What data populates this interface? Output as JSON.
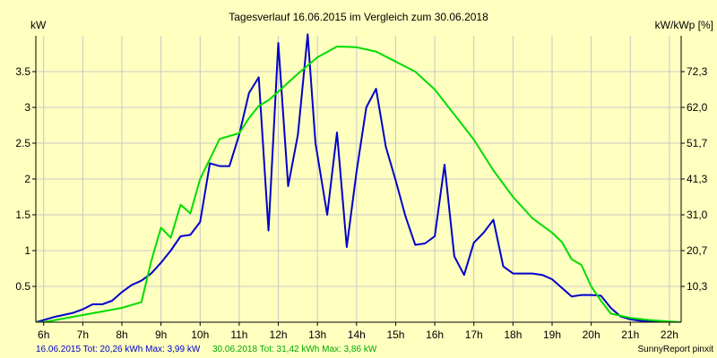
{
  "chart_data": {
    "type": "line",
    "title": "Tagesverlauf 16.06.2015 im Vergleich zum 30.06.2018",
    "ylabel_left": "kW",
    "ylabel_right": "kW/kWp [%]",
    "xlim": [
      5.8,
      22.3
    ],
    "ylim": [
      0,
      4.0
    ],
    "grid": true,
    "x_tick_values": [
      6,
      7,
      8,
      9,
      10,
      11,
      12,
      13,
      14,
      15,
      16,
      17,
      18,
      19,
      20,
      21,
      22
    ],
    "x_tick_labels": [
      "6h",
      "7h",
      "8h",
      "9h",
      "10h",
      "11h",
      "12h",
      "13h",
      "14h",
      "15h",
      "16h",
      "17h",
      "18h",
      "19h",
      "20h",
      "21h",
      "22h"
    ],
    "y_tick_values": [
      0.5,
      1,
      1.5,
      2,
      2.5,
      3,
      3.5
    ],
    "y_tick_labels": [
      "0.5",
      "1",
      "1.5",
      "2",
      "2.5",
      "3",
      "3.5"
    ],
    "y2_tick_labels": [
      "10,3",
      "20,7",
      "31,0",
      "41,3",
      "51,7",
      "62,0",
      "72,3"
    ],
    "series": [
      {
        "name": "16.06.2015",
        "color": "#0000cc",
        "x": [
          5.8,
          6.0,
          6.25,
          6.5,
          6.75,
          7.0,
          7.25,
          7.5,
          7.75,
          8.0,
          8.25,
          8.5,
          8.75,
          9.0,
          9.25,
          9.5,
          9.75,
          10.0,
          10.25,
          10.5,
          10.75,
          11.0,
          11.25,
          11.5,
          11.75,
          12.0,
          12.25,
          12.5,
          12.75,
          12.95,
          13.25,
          13.5,
          13.75,
          14.0,
          14.25,
          14.5,
          14.75,
          15.0,
          15.25,
          15.5,
          15.75,
          16.0,
          16.25,
          16.5,
          16.75,
          17.0,
          17.25,
          17.5,
          17.75,
          18.0,
          18.25,
          18.5,
          18.75,
          19.0,
          19.25,
          19.5,
          19.75,
          20.0,
          20.25,
          20.5,
          20.75,
          21.0,
          21.25,
          21.5,
          21.75,
          22.0,
          22.3
        ],
        "values": [
          0.0,
          0.03,
          0.07,
          0.1,
          0.13,
          0.18,
          0.25,
          0.25,
          0.3,
          0.42,
          0.52,
          0.58,
          0.68,
          0.83,
          1.0,
          1.2,
          1.22,
          1.4,
          2.22,
          2.18,
          2.18,
          2.62,
          3.2,
          3.42,
          1.28,
          3.9,
          1.9,
          2.62,
          4.02,
          2.5,
          1.5,
          2.65,
          1.05,
          2.1,
          3.0,
          3.26,
          2.45,
          1.98,
          1.48,
          1.08,
          1.1,
          1.2,
          2.2,
          0.92,
          0.66,
          1.11,
          1.25,
          1.43,
          0.78,
          0.68,
          0.68,
          0.68,
          0.66,
          0.6,
          0.48,
          0.36,
          0.38,
          0.38,
          0.37,
          0.2,
          0.08,
          0.04,
          0.02,
          0.01,
          0.0,
          0.0,
          0.0
        ]
      },
      {
        "name": "30.06.2018",
        "color": "#00dd00",
        "x": [
          5.8,
          6.0,
          6.5,
          7.0,
          7.5,
          8.0,
          8.5,
          8.75,
          9.0,
          9.25,
          9.5,
          9.75,
          10.0,
          10.25,
          10.5,
          10.75,
          11.0,
          11.25,
          11.5,
          11.75,
          12.0,
          12.5,
          13.0,
          13.5,
          14.0,
          14.5,
          15.0,
          15.5,
          16.0,
          16.5,
          17.0,
          17.5,
          18.0,
          18.5,
          19.0,
          19.25,
          19.5,
          19.75,
          20.0,
          20.25,
          20.5,
          21.0,
          21.5,
          22.0,
          22.3
        ],
        "values": [
          0.0,
          0.0,
          0.05,
          0.1,
          0.15,
          0.2,
          0.28,
          0.85,
          1.32,
          1.18,
          1.64,
          1.52,
          2.0,
          2.28,
          2.56,
          2.6,
          2.64,
          2.85,
          3.02,
          3.1,
          3.22,
          3.47,
          3.7,
          3.85,
          3.84,
          3.78,
          3.64,
          3.5,
          3.25,
          2.9,
          2.55,
          2.12,
          1.75,
          1.45,
          1.25,
          1.12,
          0.88,
          0.8,
          0.5,
          0.3,
          0.12,
          0.06,
          0.03,
          0.01,
          0.0
        ]
      }
    ]
  },
  "footer": {
    "series1_info": "16.06.2015 Tot: 20,26 kWh Max: 3,99 kW",
    "series2_info": "30.06.2018 Tot: 31,42 kWh Max: 3,86 kW",
    "credit": "SunnyReport pinxit"
  },
  "colors": {
    "background": "#ffffc0",
    "grid": "#c8c8c8",
    "axis": "#000000"
  }
}
